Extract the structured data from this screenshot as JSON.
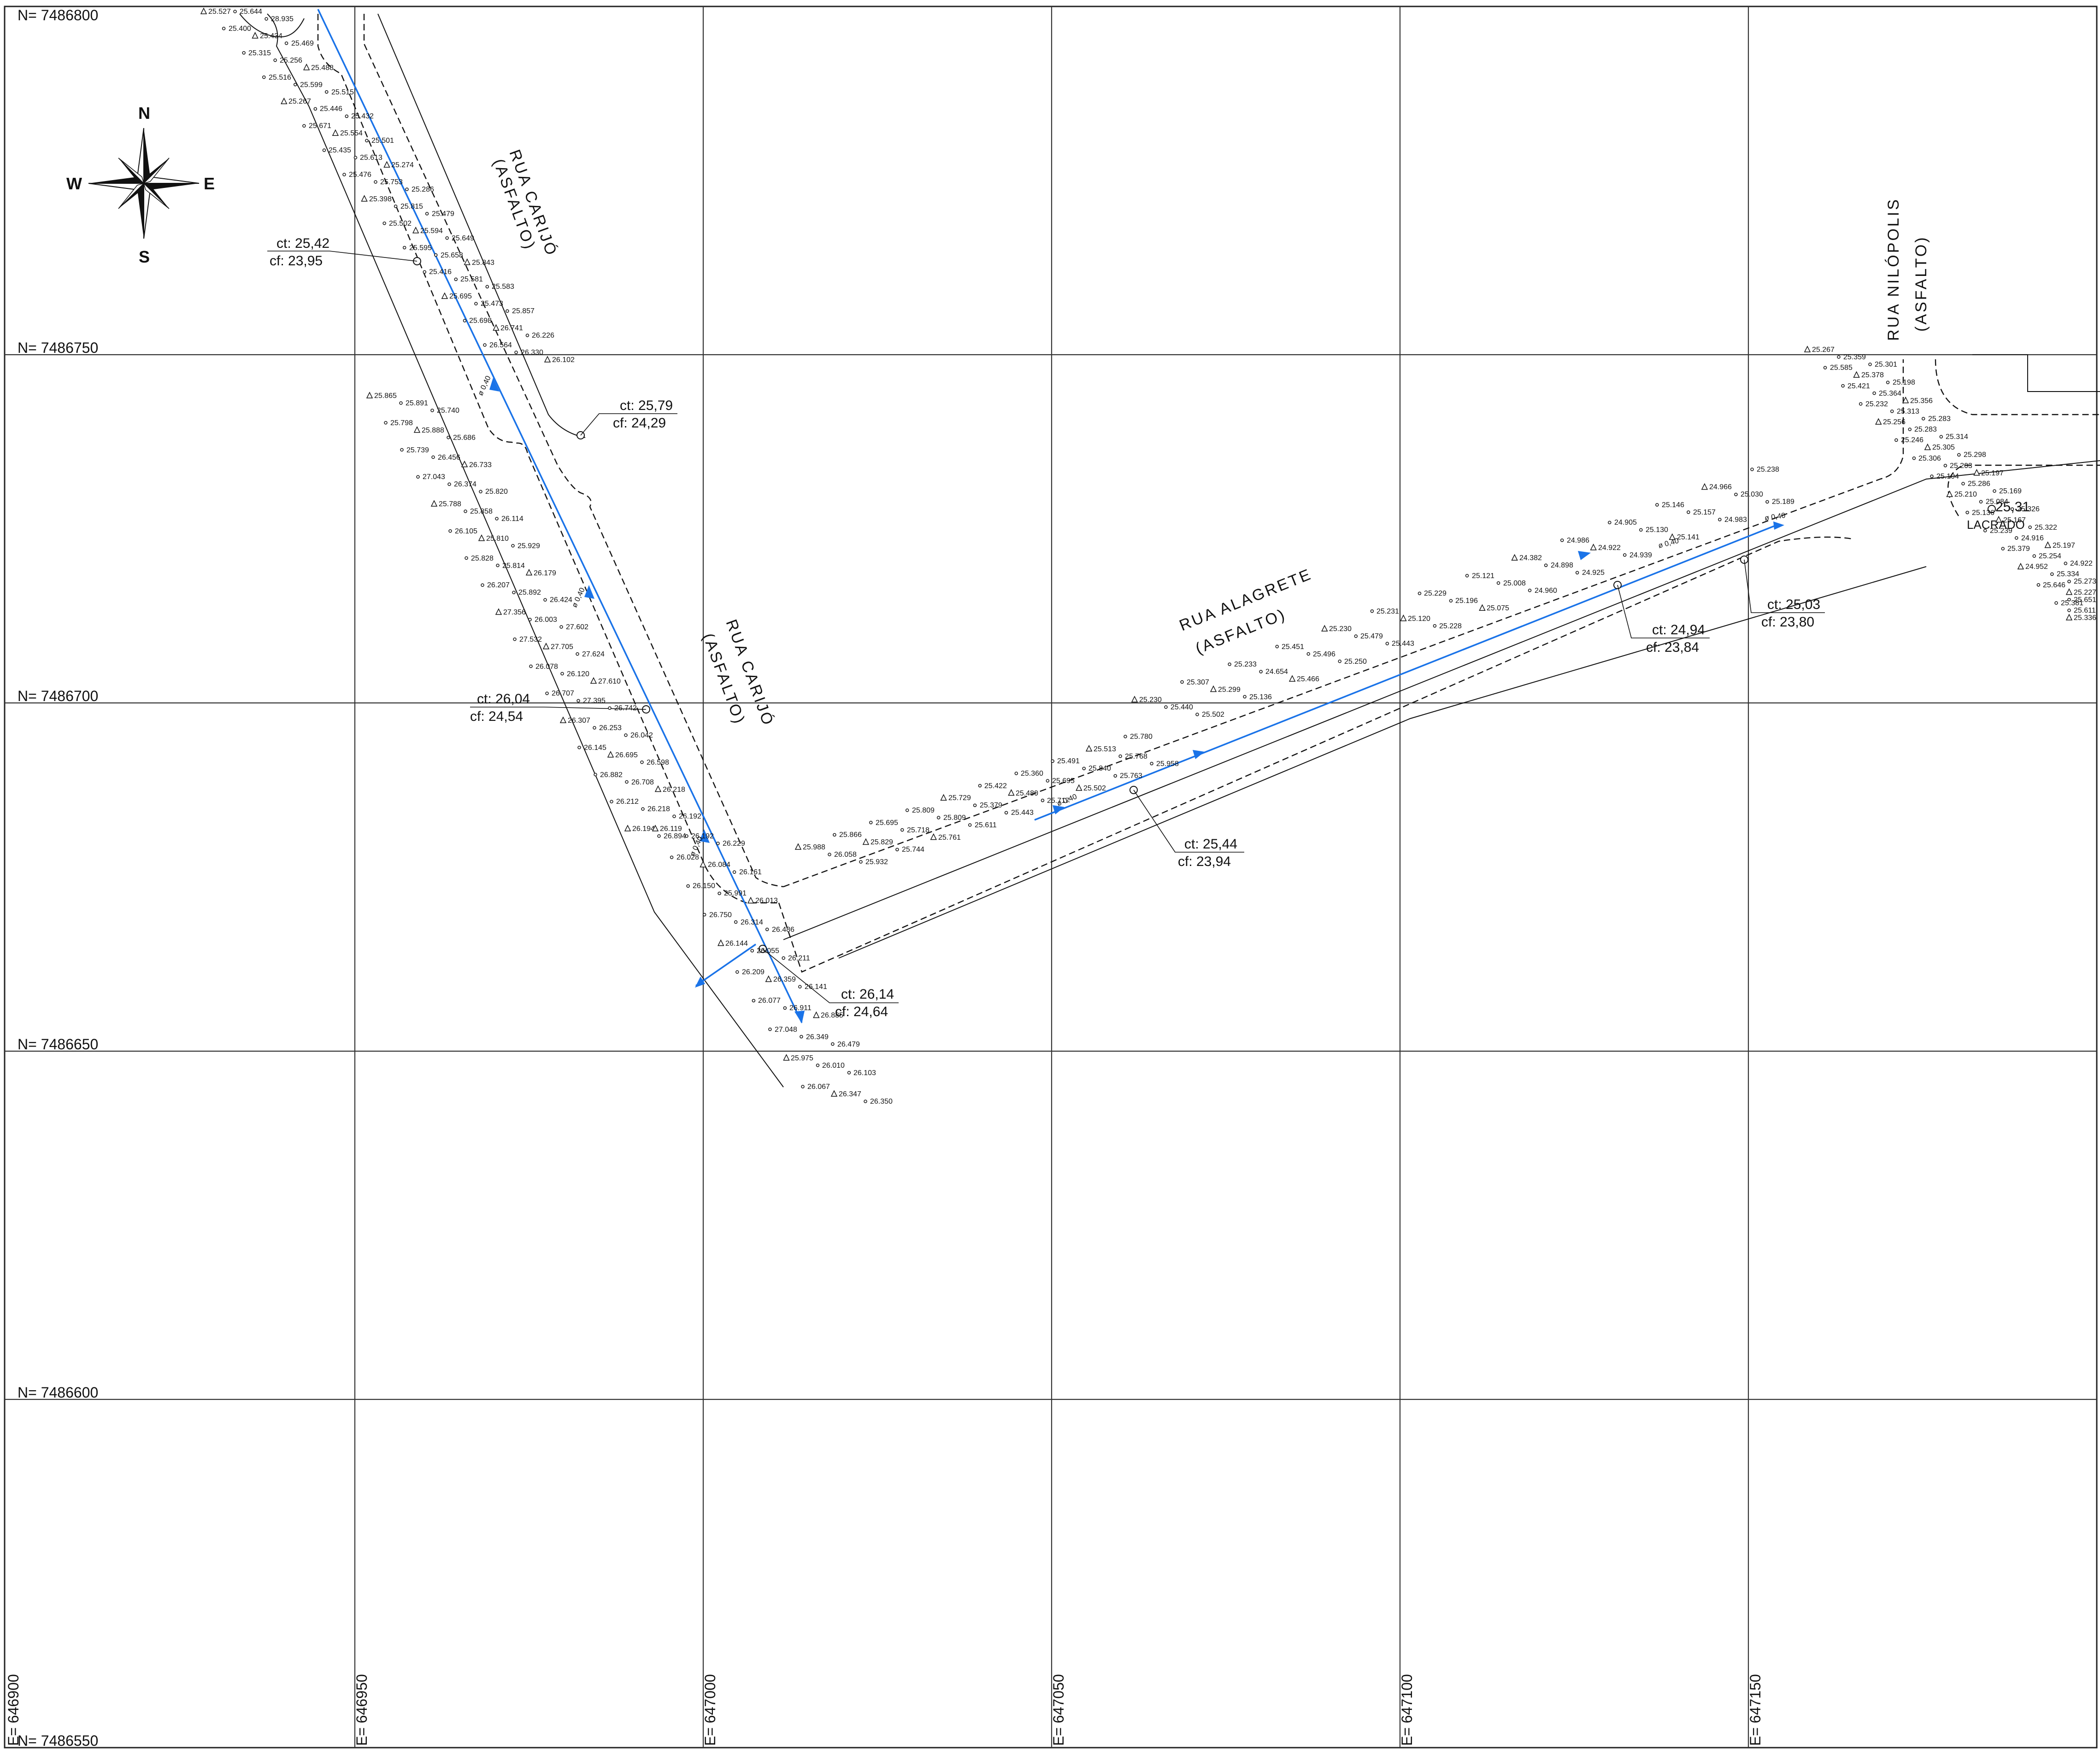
{
  "compass": {
    "north": "N",
    "south": "S",
    "east": "E",
    "west": "W",
    "icon": "compass-rose-icon"
  },
  "grid": {
    "northings": [
      "N= 7486800",
      "N= 7486750",
      "N= 7486700",
      "N= 7486650",
      "N= 7486600",
      "N= 7486550"
    ],
    "eastings": [
      "E= 646900",
      "E= 646950",
      "E= 647000",
      "E= 647050",
      "E= 647100",
      "E= 647150"
    ]
  },
  "streets": [
    {
      "name": "RUA CARIJÓ",
      "surface": "(ASFALTO)"
    },
    {
      "name": "RUA CARIJÓ",
      "surface": "(ASFALTO)"
    },
    {
      "name": "RUA ALAGRETE",
      "surface": "(ASFALTO)"
    },
    {
      "name": "RUA NILÓPOLIS",
      "surface": "(ASFALTO)"
    }
  ],
  "manholes": [
    {
      "ct": "ct: 25,42",
      "cf": "cf: 23,95"
    },
    {
      "ct": "ct: 25,79",
      "cf": "cf: 24,29"
    },
    {
      "ct": "ct: 26,04",
      "cf": "cf: 24,54"
    },
    {
      "ct": "ct: 26,14",
      "cf": "cf: 24,64"
    },
    {
      "ct": "ct: 25,44",
      "cf": "cf: 23,94"
    },
    {
      "ct": "ct: 24,94",
      "cf": "cf: 23,84"
    },
    {
      "ct": "ct: 25,03",
      "cf": "cf: 23,80"
    },
    {
      "ct": "25,31",
      "cf": "LACRADO"
    }
  ],
  "pipe_labels": [
    "ø 0,40",
    "ø 0,40",
    "ø 0,40",
    "ø 0,40",
    "ø 0,40",
    "ø 0,40"
  ],
  "spot_elevations": {
    "carijo_north": [
      "25.527",
      "25.644",
      "28.935",
      "25.400",
      "25.434",
      "25.469",
      "25.315",
      "25.256",
      "25.488",
      "25.516",
      "25.599",
      "25.515",
      "25.267",
      "25.446",
      "25.432",
      "25.671",
      "25.554",
      "25.501",
      "25.435",
      "25.613",
      "25.274",
      "25.476",
      "25.753",
      "25.286",
      "25.398",
      "25.815",
      "25.479",
      "25.502",
      "25.594",
      "25.649",
      "25.595",
      "25.658",
      "25.843",
      "25.416",
      "25.581",
      "25.583",
      "25.695",
      "25.473",
      "25.857",
      "25.698",
      "26.741",
      "26.226",
      "26.564",
      "26.330",
      "26.102"
    ],
    "carijo_middle": [
      "25.865",
      "25.891",
      "25.740",
      "25.798",
      "25.888",
      "25.686",
      "25.739",
      "26.456",
      "26.733",
      "27.043",
      "26.374",
      "25.820",
      "25.788",
      "25.858",
      "26.114",
      "26.105",
      "25.810",
      "25.929",
      "25.828",
      "25.814",
      "26.179",
      "26.207",
      "25.892",
      "26.424",
      "27.356",
      "26.003",
      "27.602",
      "27.532",
      "27.705",
      "27.624",
      "26.078",
      "26.120",
      "27.610",
      "26.707",
      "27.395",
      "26.742",
      "26.307",
      "26.253",
      "26.042",
      "26.145",
      "26.695",
      "26.598",
      "26.882",
      "26.708",
      "26.218",
      "26.212",
      "26.218",
      "26.192",
      "26.194",
      "26.894"
    ],
    "carijo_south": [
      "26.119",
      "26.192",
      "26.229",
      "26.028",
      "26.084",
      "26.161",
      "26.150",
      "25.991",
      "26.013",
      "26.750",
      "26.314",
      "26.486",
      "26.144",
      "26.055",
      "26.211",
      "26.209",
      "26.359",
      "26.141",
      "26.077",
      "26.911",
      "26.885",
      "27.048",
      "26.349",
      "26.479",
      "25.975",
      "26.010",
      "26.103",
      "26.067",
      "26.347",
      "26.350"
    ],
    "alagrete_west": [
      "25.988",
      "26.058",
      "25.932",
      "25.866",
      "25.829",
      "25.744",
      "25.695",
      "25.718",
      "25.761",
      "25.809",
      "25.809",
      "25.611",
      "25.729",
      "25.379",
      "25.443",
      "25.422",
      "25.480",
      "25.717",
      "25.360",
      "25.695",
      "25.502",
      "25.491",
      "25.840",
      "25.763",
      "25.513",
      "25.768",
      "25.958",
      "25.780"
    ],
    "alagrete_east": [
      "25.230",
      "25.440",
      "25.502",
      "25.307",
      "25.299",
      "25.136",
      "25.233",
      "24.654",
      "25.466",
      "25.451",
      "25.496",
      "25.250",
      "25.230",
      "25.479",
      "25.443",
      "25.231",
      "25.120",
      "25.228",
      "25.229",
      "25.196",
      "25.075",
      "25.121",
      "25.008",
      "24.960",
      "24.382",
      "24.898",
      "24.925",
      "24.986",
      "24.922",
      "24.939",
      "24.905",
      "25.130",
      "25.141",
      "25.146",
      "25.157",
      "24.983",
      "24.966",
      "25.030",
      "25.189",
      "25.238"
    ],
    "nilopolis": [
      "25.267",
      "25.359",
      "25.301",
      "25.585",
      "25.378",
      "25.198",
      "25.421",
      "25.364",
      "25.356",
      "25.232",
      "25.313",
      "25.283",
      "25.256",
      "25.283",
      "25.314",
      "25.246",
      "25.305",
      "25.298",
      "25.306",
      "25.203",
      "25.197",
      "25.104",
      "25.286",
      "25.169",
      "25.210",
      "25.084",
      "25.326",
      "25.136",
      "25.167",
      "25.322",
      "25.239",
      "24.916",
      "25.197",
      "25.379",
      "25.254",
      "24.922",
      "24.952",
      "25.334",
      "25.273",
      "25.646",
      "25.227",
      "25.651",
      "25.381",
      "25.611",
      "25.336"
    ]
  }
}
